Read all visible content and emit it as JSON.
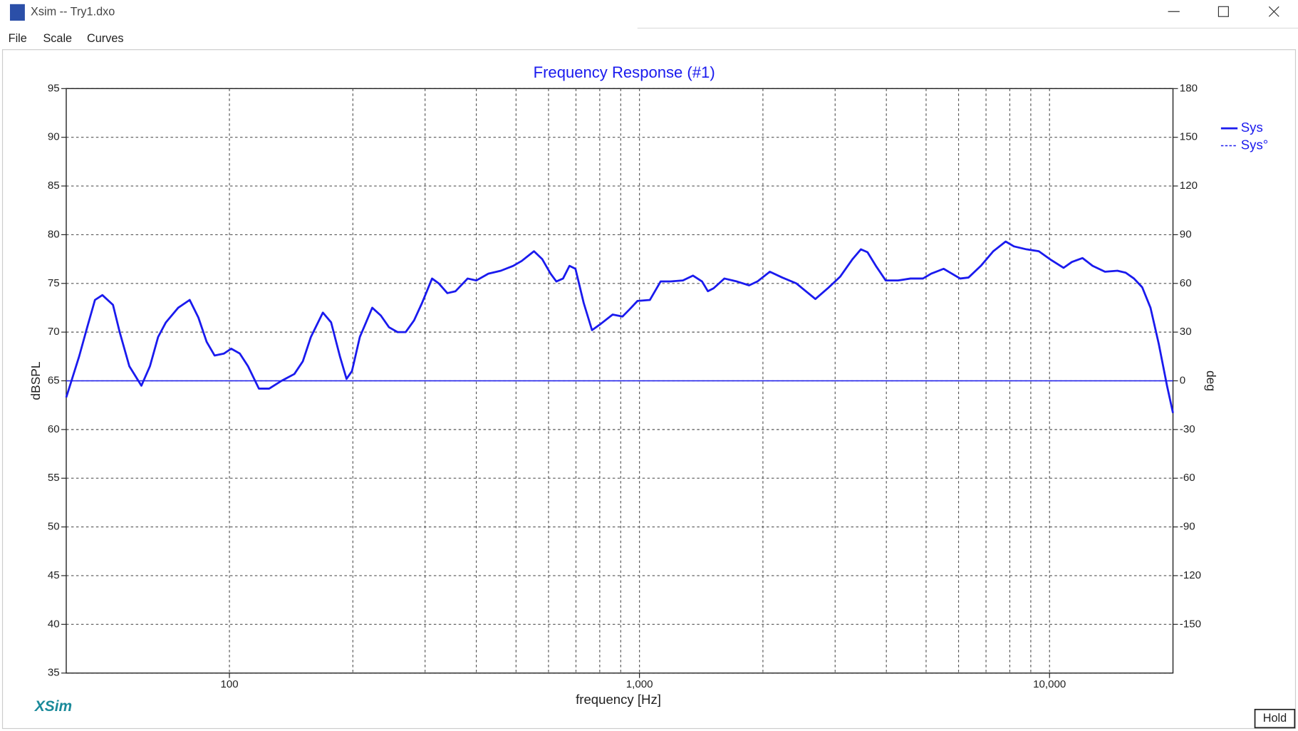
{
  "window": {
    "title": "Xsim -- Try1.dxo",
    "menu": [
      "File",
      "Scale",
      "Curves"
    ],
    "logo": "XSim",
    "button": "Hold"
  },
  "chart_data": {
    "type": "line",
    "title": "Frequency Response (#1)",
    "x_label": "frequency [Hz]",
    "y_label": "dBSPL",
    "y2_label": "deg",
    "x_scale": "log",
    "grid": true,
    "xlim": [
      40,
      20000
    ],
    "xticks": [
      100,
      {
        "value": 1000,
        "label": "1,000"
      },
      {
        "value": 10000,
        "label": "10,000"
      }
    ],
    "minor_xticks": [
      200,
      300,
      400,
      500,
      600,
      700,
      800,
      900,
      2000,
      3000,
      4000,
      5000,
      6000,
      7000,
      8000,
      9000
    ],
    "ylim": [
      35,
      95
    ],
    "yticks": [
      35,
      40,
      45,
      50,
      55,
      60,
      65,
      70,
      75,
      80,
      85,
      90,
      95
    ],
    "y2lim": [
      -180,
      180
    ],
    "y2ticks": [
      -150,
      -120,
      -90,
      -60,
      -30,
      0,
      30,
      60,
      90,
      120,
      150,
      180
    ],
    "legend": "upper right",
    "series": [
      {
        "name": "Sys",
        "color": "#1a1aee",
        "style": "solid",
        "x": [
          40,
          43,
          45,
          47,
          49,
          52,
          54,
          57,
          61,
          64,
          67,
          70,
          75,
          80,
          84,
          88,
          92,
          97,
          101,
          106,
          111,
          118,
          125,
          134,
          144,
          151,
          158,
          169,
          177,
          186,
          193,
          199,
          208,
          223,
          234,
          245,
          257,
          269,
          282,
          295,
          312,
          324,
          340,
          356,
          381,
          400,
          428,
          459,
          492,
          516,
          553,
          579,
          607,
          627,
          651,
          675,
          698,
          731,
          766,
          802,
          860,
          909,
          944,
          989,
          1060,
          1126,
          1191,
          1276,
          1350,
          1421,
          1468,
          1516,
          1611,
          1727,
          1851,
          1939,
          2079,
          2230,
          2413,
          2685,
          2879,
          3087,
          3309,
          3467,
          3598,
          3771,
          3986,
          4273,
          4581,
          4912,
          5146,
          5517,
          6053,
          6342,
          6799,
          7291,
          7816,
          8189,
          8779,
          9414,
          10093,
          10822,
          11337,
          12037,
          12735,
          13654,
          14641,
          15336,
          16066,
          16827,
          17628,
          18464,
          19340,
          20000
        ],
        "values": [
          63.3,
          67.5,
          70.5,
          73.3,
          73.8,
          72.8,
          70,
          66.5,
          64.5,
          66.5,
          69.5,
          71,
          72.5,
          73.3,
          71.5,
          69,
          67.6,
          67.8,
          68.3,
          67.8,
          66.5,
          64.2,
          64.2,
          65,
          65.7,
          67,
          69.5,
          72,
          71,
          67.5,
          65.2,
          66,
          69.5,
          72.5,
          71.7,
          70.5,
          70,
          70,
          71.2,
          73,
          75.5,
          75,
          74,
          74.2,
          75.5,
          75.3,
          76,
          76.3,
          76.8,
          77.3,
          78.3,
          77.5,
          76,
          75.2,
          75.5,
          76.8,
          76.5,
          73,
          70.2,
          70.8,
          71.8,
          71.6,
          72.3,
          73.2,
          73.3,
          75.2,
          75.2,
          75.3,
          75.8,
          75.2,
          74.2,
          74.5,
          75.5,
          75.2,
          74.8,
          75.2,
          76.2,
          75.6,
          75,
          73.4,
          74.5,
          75.7,
          77.5,
          78.5,
          78.2,
          76.8,
          75.3,
          75.3,
          75.5,
          75.5,
          76,
          76.5,
          75.5,
          75.6,
          76.8,
          78.3,
          79.3,
          78.8,
          78.5,
          78.3,
          77.4,
          76.6,
          77.2,
          77.6,
          76.8,
          76.2,
          76.3,
          76.1,
          75.5,
          74.6,
          72.5,
          68.8,
          64.5,
          61.7
        ]
      },
      {
        "name": "Sys°",
        "color": "#1a1aee",
        "style": "dashed",
        "axis": "y2",
        "x": [
          40,
          20000
        ],
        "values": [
          0,
          0
        ]
      }
    ]
  }
}
